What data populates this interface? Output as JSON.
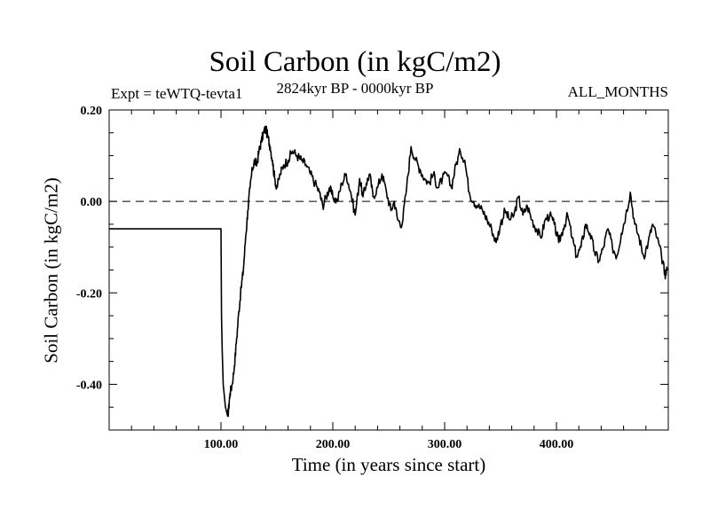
{
  "chart_data": {
    "type": "line",
    "title": "Soil Carbon (in kgC/m2)",
    "subtitle": "2824kyr BP - 0000kyr BP",
    "annotation_left": "Expt = teWTQ-tevta1",
    "annotation_right": "ALL_MONTHS",
    "xlabel": "Time (in years since start)",
    "ylabel": "Soil Carbon (in kgC/m2)",
    "xlim": [
      0,
      500
    ],
    "ylim": [
      -0.5,
      0.2
    ],
    "x_ticks": [
      100,
      200,
      300,
      400
    ],
    "x_tick_labels": [
      "100.00",
      "200.00",
      "300.00",
      "400.00"
    ],
    "y_ticks": [
      0.2,
      0.0,
      -0.2,
      -0.4
    ],
    "y_tick_labels": [
      "0.20",
      "0.00",
      "-0.20",
      "-0.40"
    ],
    "reference_line": {
      "y": 0.0,
      "style": "dashed"
    },
    "series": [
      {
        "name": "Soil Carbon",
        "x": [
          0,
          99,
          100,
          100.5,
          101,
          102,
          104,
          105,
          106,
          107,
          108,
          110,
          112,
          114,
          116,
          118,
          120,
          122,
          124,
          126,
          128,
          130,
          132,
          134,
          136,
          138,
          140,
          142,
          144,
          146,
          148,
          150,
          153,
          156,
          160,
          164,
          168,
          172,
          176,
          180,
          184,
          188,
          191,
          194,
          197,
          200,
          204,
          208,
          212,
          216,
          220,
          224,
          227,
          230,
          233,
          236,
          240,
          244,
          248,
          252,
          255,
          258,
          262,
          266,
          270,
          274,
          278,
          282,
          286,
          290,
          294,
          298,
          302,
          306,
          310,
          314,
          318,
          322,
          326,
          330,
          334,
          338,
          342,
          346,
          350,
          354,
          358,
          362,
          366,
          370,
          374,
          378,
          382,
          386,
          390,
          394,
          398,
          402,
          406,
          410,
          414,
          418,
          422,
          426,
          430,
          434,
          438,
          442,
          446,
          450,
          454,
          458,
          462,
          466,
          470,
          474,
          478,
          482,
          486,
          490,
          494,
          497,
          499
        ],
        "y": [
          -0.06,
          -0.06,
          -0.06,
          -0.25,
          -0.32,
          -0.4,
          -0.45,
          -0.46,
          -0.47,
          -0.45,
          -0.42,
          -0.4,
          -0.36,
          -0.3,
          -0.24,
          -0.19,
          -0.15,
          -0.08,
          -0.02,
          0.03,
          0.07,
          0.09,
          0.08,
          0.11,
          0.13,
          0.15,
          0.16,
          0.14,
          0.12,
          0.09,
          0.05,
          0.03,
          0.06,
          0.08,
          0.09,
          0.11,
          0.1,
          0.09,
          0.08,
          0.06,
          0.04,
          0.02,
          -0.01,
          0.01,
          0.03,
          0.01,
          0.0,
          0.04,
          0.06,
          0.02,
          -0.03,
          0.05,
          0.01,
          0.04,
          0.06,
          0.01,
          0.03,
          0.06,
          0.02,
          -0.02,
          0.0,
          -0.04,
          -0.05,
          0.03,
          0.12,
          0.09,
          0.07,
          0.05,
          0.04,
          0.06,
          0.03,
          0.05,
          0.06,
          0.03,
          0.08,
          0.11,
          0.09,
          0.02,
          0.0,
          -0.01,
          -0.02,
          -0.04,
          -0.06,
          -0.09,
          -0.05,
          -0.02,
          -0.04,
          -0.03,
          0.01,
          -0.03,
          -0.01,
          -0.04,
          -0.06,
          -0.08,
          -0.04,
          -0.03,
          -0.05,
          -0.09,
          -0.06,
          -0.03,
          -0.08,
          -0.12,
          -0.1,
          -0.05,
          -0.07,
          -0.11,
          -0.13,
          -0.1,
          -0.06,
          -0.1,
          -0.12,
          -0.07,
          -0.03,
          0.02,
          -0.05,
          -0.08,
          -0.12,
          -0.09,
          -0.05,
          -0.08,
          -0.12,
          -0.16,
          -0.15
        ]
      }
    ]
  }
}
